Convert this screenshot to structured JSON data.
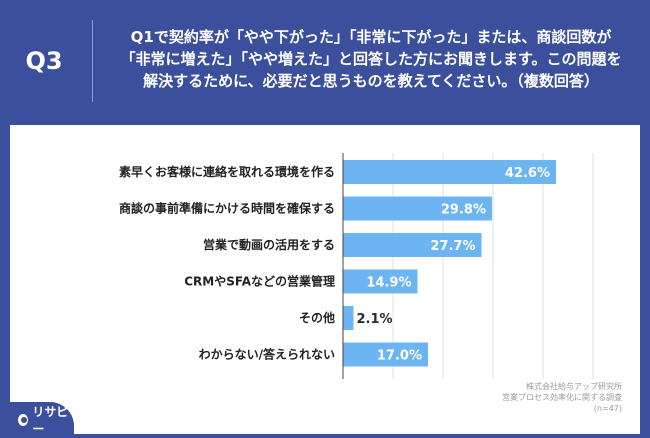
{
  "header": {
    "q_number": "Q3",
    "question": "Q1で契約率が「やや下がった」「非常に下がった」または、商談回数が\n「非常に増えた」「やや増えた」と回答した方にお聞きします。この問題を\n解決するために、必要だと思うものを教えてください。（複数回答）"
  },
  "colors": {
    "header_bg": "#3b4f9c",
    "bar": "#6db5f2",
    "label_text": "#ffffff"
  },
  "chart_data": {
    "type": "bar",
    "orientation": "horizontal",
    "categories": [
      "素早くお客様に連絡を取れる環境を作る",
      "商談の事前準備にかける時間を確保する",
      "営業で動画の活用をする",
      "CRMやSFAなどの営業管理",
      "その他",
      "わからない/答えられない"
    ],
    "values": [
      42.6,
      29.8,
      27.7,
      14.9,
      2.1,
      17.0
    ],
    "value_labels": [
      "42.6%",
      "29.8%",
      "27.7%",
      "14.9%",
      "2.1%",
      "17.0%"
    ],
    "xlim": [
      0,
      60
    ],
    "grid": true
  },
  "source": {
    "company": "株式会社給与アップ研究所",
    "survey": "営業プロセス効率化に関する調査",
    "n": "(n=47)"
  },
  "logo": {
    "text": "リサピー"
  }
}
